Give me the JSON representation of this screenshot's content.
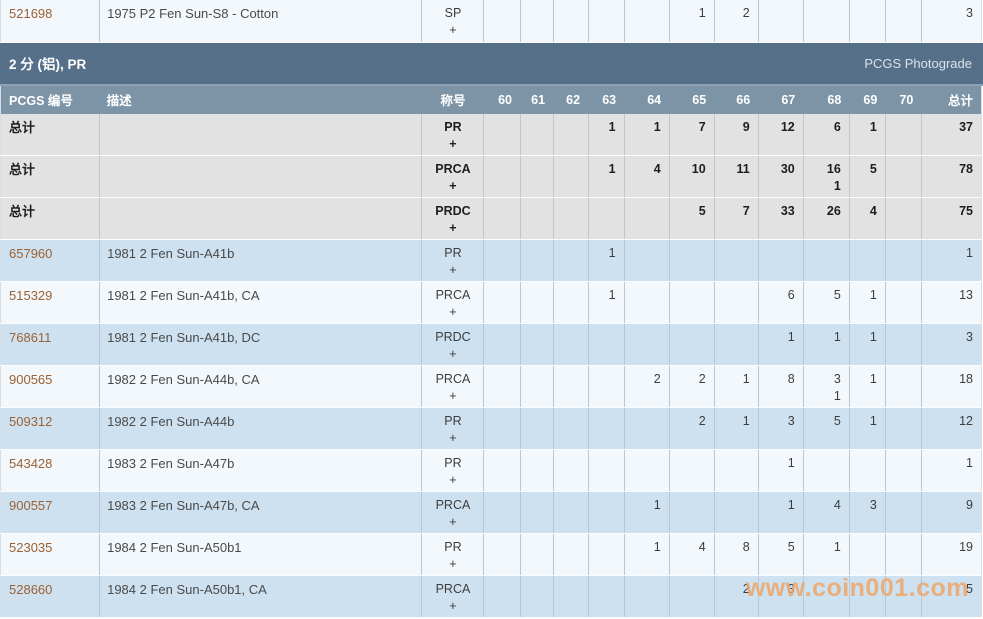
{
  "watermark_text": "www.coin001.com",
  "top_table": {
    "row": {
      "kind": "top",
      "id": "521698",
      "desc": "1975 P2 Fen Sun-S8 - Cotton",
      "grade": "SP",
      "plus": "+",
      "cells": [
        "",
        "",
        "",
        "",
        "",
        "1",
        "2",
        "",
        "",
        "",
        ""
      ],
      "total": "3"
    }
  },
  "section": {
    "title": "2 分 (铝), PR",
    "right_label": "PCGS Photograde"
  },
  "table": {
    "columns": [
      "PCGS 编号",
      "描述",
      "称号",
      "60",
      "61",
      "62",
      "63",
      "64",
      "65",
      "66",
      "67",
      "68",
      "69",
      "70",
      "总计"
    ],
    "rows": [
      {
        "kind": "total",
        "id": "总计",
        "desc": "",
        "grade": "PR",
        "plus": "+",
        "cells": [
          "",
          "",
          "",
          "1",
          "1",
          "7",
          "9",
          "12",
          "6",
          "1",
          ""
        ],
        "total": "37"
      },
      {
        "kind": "total",
        "id": "总计",
        "desc": "",
        "grade": "PRCA",
        "plus": "+",
        "cells": [
          "",
          "",
          "",
          "1",
          "4",
          "10",
          "11",
          "30",
          "16|1",
          "5",
          ""
        ],
        "total": "78"
      },
      {
        "kind": "total",
        "id": "总计",
        "desc": "",
        "grade": "PRDC",
        "plus": "+",
        "cells": [
          "",
          "",
          "",
          "",
          "",
          "5",
          "7",
          "33",
          "26",
          "4",
          ""
        ],
        "total": "75"
      },
      {
        "kind": "data",
        "id": "657960",
        "desc": "1981 2 Fen Sun-A41b",
        "grade": "PR",
        "plus": "+",
        "cells": [
          "",
          "",
          "",
          "1",
          "",
          "",
          "",
          "",
          "",
          "",
          ""
        ],
        "total": "1"
      },
      {
        "kind": "data",
        "id": "515329",
        "desc": "1981 2 Fen Sun-A41b, CA",
        "grade": "PRCA",
        "plus": "+",
        "cells": [
          "",
          "",
          "",
          "1",
          "",
          "",
          "",
          "6",
          "5",
          "1",
          ""
        ],
        "total": "13"
      },
      {
        "kind": "data",
        "id": "768611",
        "desc": "1981 2 Fen Sun-A41b, DC",
        "grade": "PRDC",
        "plus": "+",
        "cells": [
          "",
          "",
          "",
          "",
          "",
          "",
          "",
          "1",
          "1",
          "1",
          ""
        ],
        "total": "3"
      },
      {
        "kind": "data",
        "id": "900565",
        "desc": "1982 2 Fen Sun-A44b, CA",
        "grade": "PRCA",
        "plus": "+",
        "cells": [
          "",
          "",
          "",
          "",
          "2",
          "2",
          "1",
          "8",
          "3|1",
          "1",
          ""
        ],
        "total": "18"
      },
      {
        "kind": "data",
        "id": "509312",
        "desc": "1982 2 Fen Sun-A44b",
        "grade": "PR",
        "plus": "+",
        "cells": [
          "",
          "",
          "",
          "",
          "",
          "2",
          "1",
          "3",
          "5",
          "1",
          ""
        ],
        "total": "12"
      },
      {
        "kind": "data",
        "id": "543428",
        "desc": "1983 2 Fen Sun-A47b",
        "grade": "PR",
        "plus": "+",
        "cells": [
          "",
          "",
          "",
          "",
          "",
          "",
          "",
          "1",
          "",
          "",
          ""
        ],
        "total": "1"
      },
      {
        "kind": "data",
        "id": "900557",
        "desc": "1983 2 Fen Sun-A47b, CA",
        "grade": "PRCA",
        "plus": "+",
        "cells": [
          "",
          "",
          "",
          "",
          "1",
          "",
          "",
          "1",
          "4",
          "3",
          ""
        ],
        "total": "9"
      },
      {
        "kind": "data",
        "id": "523035",
        "desc": "1984 2 Fen Sun-A50b1",
        "grade": "PR",
        "plus": "+",
        "cells": [
          "",
          "",
          "",
          "",
          "1",
          "4",
          "8",
          "5",
          "1",
          "",
          ""
        ],
        "total": "19"
      },
      {
        "kind": "data",
        "id": "528660",
        "desc": "1984 2 Fen Sun-A50b1, CA",
        "grade": "PRCA",
        "plus": "+",
        "cells": [
          "",
          "",
          "",
          "",
          "",
          "",
          "2",
          "3",
          "",
          "",
          ""
        ],
        "total": "5"
      }
    ]
  }
}
